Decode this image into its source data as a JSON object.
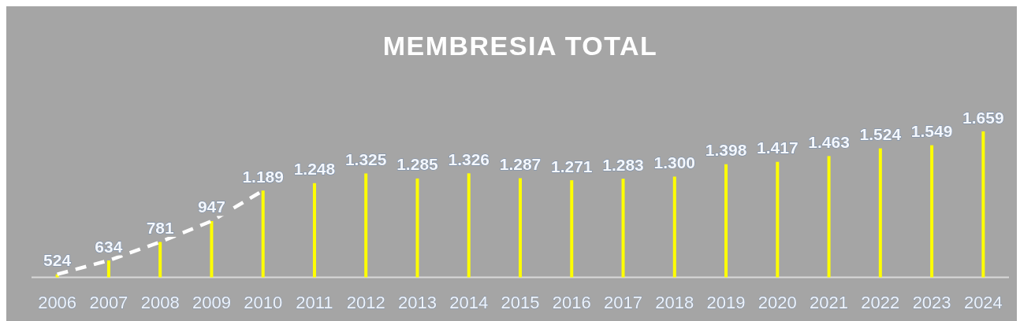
{
  "chart_data": {
    "type": "bar",
    "title": "MEMBRESIA TOTAL",
    "categories": [
      "2006",
      "2007",
      "2008",
      "2009",
      "2010",
      "2011",
      "2012",
      "2013",
      "2014",
      "2015",
      "2016",
      "2017",
      "2018",
      "2019",
      "2020",
      "2021",
      "2022",
      "2023",
      "2024"
    ],
    "series": [
      {
        "color": "#ffff00",
        "values": [
          524,
          634,
          781,
          947,
          1189,
          1248,
          1325,
          1285,
          1326,
          1287,
          1271,
          1283,
          1300,
          1398,
          1417,
          1463,
          1524,
          1549,
          1659
        ],
        "value_labels": [
          "524",
          "634",
          "781",
          "947",
          "1.189",
          "1.248",
          "1.325",
          "1.285",
          "1.326",
          "1.287",
          "1.271",
          "1.283",
          "1.300",
          "1.398",
          "1.417",
          "1.463",
          "1.524",
          "1.549",
          "1.659"
        ]
      },
      {
        "type": "line",
        "color": "#ffffff",
        "line_style": "dashed",
        "values": [
          524,
          634,
          781,
          947,
          1189,
          null,
          null,
          null,
          null,
          null,
          null,
          null,
          null,
          null,
          null,
          null,
          null,
          null,
          null
        ]
      }
    ],
    "ylim": [
      500,
      1659
    ],
    "tick_labels": "x"
  }
}
